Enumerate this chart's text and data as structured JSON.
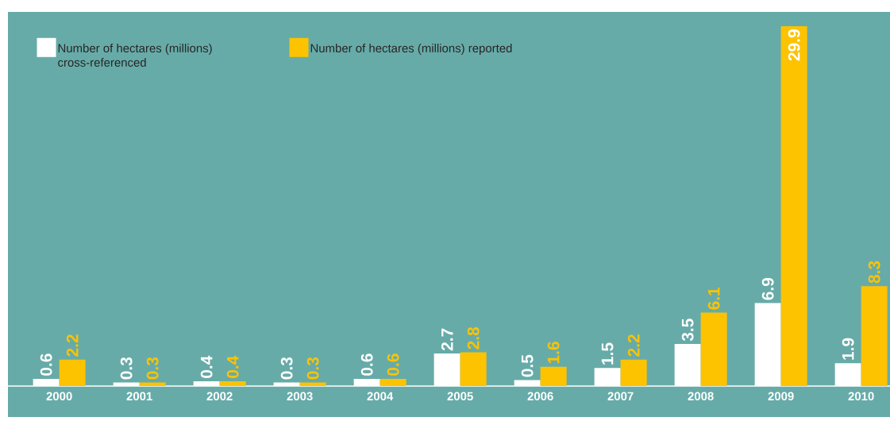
{
  "chart_data": {
    "type": "bar",
    "categories": [
      "2000",
      "2001",
      "2002",
      "2003",
      "2004",
      "2005",
      "2006",
      "2007",
      "2008",
      "2009",
      "2010"
    ],
    "series": [
      {
        "name": "Number of hectares (millions) cross-referenced",
        "color": "#ffffff",
        "values": [
          0.6,
          0.3,
          0.4,
          0.3,
          0.6,
          2.7,
          0.5,
          1.5,
          3.5,
          6.9,
          1.9
        ]
      },
      {
        "name": "Number of hectares (millions) reported",
        "color": "#fdc300",
        "values": [
          2.2,
          0.3,
          0.4,
          0.3,
          0.6,
          2.8,
          1.6,
          2.2,
          6.1,
          29.9,
          8.3
        ]
      }
    ],
    "data_labels": true,
    "legend": "top left"
  }
}
